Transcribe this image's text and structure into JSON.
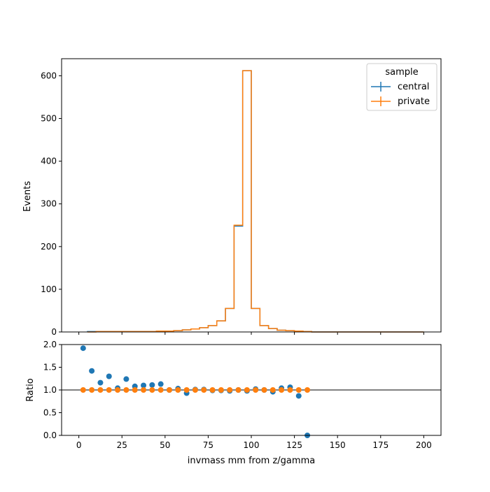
{
  "chart_data": [
    {
      "type": "line",
      "panel": "main",
      "ylabel": "Events",
      "ylim": [
        0,
        640
      ],
      "xlim": [
        -10,
        210
      ],
      "yticks": [
        "0",
        "100",
        "200",
        "300",
        "400",
        "500",
        "600"
      ],
      "bin_edges": [
        5,
        10,
        15,
        20,
        25,
        30,
        35,
        40,
        45,
        50,
        55,
        60,
        65,
        70,
        75,
        80,
        85,
        90,
        95,
        100,
        105,
        110,
        115,
        120,
        125,
        130,
        135,
        140,
        145,
        150,
        155,
        160,
        165,
        170,
        175,
        180,
        185,
        190,
        195,
        200
      ],
      "series": [
        {
          "name": "central",
          "color": "#1f77b4",
          "values": [
            1,
            1,
            1,
            1,
            1,
            1,
            1,
            1,
            2,
            2,
            3,
            5,
            7,
            10,
            15,
            26,
            55,
            248,
            612,
            55,
            15,
            8,
            4,
            3,
            2,
            1,
            0,
            0,
            0,
            0,
            0,
            0,
            0,
            0,
            0,
            0,
            0,
            0,
            0
          ]
        },
        {
          "name": "private",
          "color": "#ff7f0e",
          "values": [
            0,
            1,
            1,
            1,
            1,
            1,
            1,
            1,
            2,
            2,
            3,
            5,
            7,
            10,
            15,
            26,
            55,
            250,
            612,
            55,
            15,
            8,
            4,
            3,
            2,
            1,
            0,
            0,
            0,
            0,
            0,
            0,
            0,
            0,
            0,
            0,
            0,
            0,
            0
          ]
        }
      ],
      "legend": {
        "title": "sample",
        "placement": "top-right"
      }
    },
    {
      "type": "scatter",
      "panel": "ratio",
      "xlabel": "invmass mm from z/gamma",
      "ylabel": "Ratio",
      "ylim": [
        0,
        2
      ],
      "xlim": [
        -10,
        210
      ],
      "xticks": [
        "0",
        "25",
        "50",
        "75",
        "100",
        "125",
        "150",
        "175",
        "200"
      ],
      "yticks": [
        "0.0",
        "0.5",
        "1.0",
        "1.5",
        "2.0"
      ],
      "reference_line": 1.0,
      "series": [
        {
          "name": "central",
          "color": "#1f77b4",
          "x": [
            2.5,
            7.5,
            12.5,
            17.5,
            22.5,
            27.5,
            32.5,
            37.5,
            42.5,
            47.5,
            52.5,
            57.5,
            62.5,
            67.5,
            72.5,
            77.5,
            82.5,
            87.5,
            92.5,
            97.5,
            102.5,
            107.5,
            112.5,
            117.5,
            122.5,
            127.5,
            132.5
          ],
          "y": [
            1.92,
            1.42,
            1.16,
            1.3,
            1.04,
            1.24,
            1.08,
            1.1,
            1.11,
            1.13,
            1.0,
            1.03,
            0.93,
            1.01,
            1.01,
            0.99,
            0.99,
            0.98,
            1.0,
            0.98,
            1.02,
            1.0,
            0.96,
            1.04,
            1.06,
            0.87,
            0.0
          ]
        },
        {
          "name": "private",
          "color": "#ff7f0e",
          "x": [
            2.5,
            7.5,
            12.5,
            17.5,
            22.5,
            27.5,
            32.5,
            37.5,
            42.5,
            47.5,
            52.5,
            57.5,
            62.5,
            67.5,
            72.5,
            77.5,
            82.5,
            87.5,
            92.5,
            97.5,
            102.5,
            107.5,
            112.5,
            117.5,
            122.5,
            127.5,
            132.5
          ],
          "y": [
            1,
            1,
            1,
            1,
            1,
            1,
            1,
            1,
            1,
            1,
            1,
            1,
            1,
            1,
            1,
            1,
            1,
            1,
            1,
            1,
            1,
            1,
            1,
            1,
            1,
            1,
            1
          ]
        }
      ]
    }
  ]
}
